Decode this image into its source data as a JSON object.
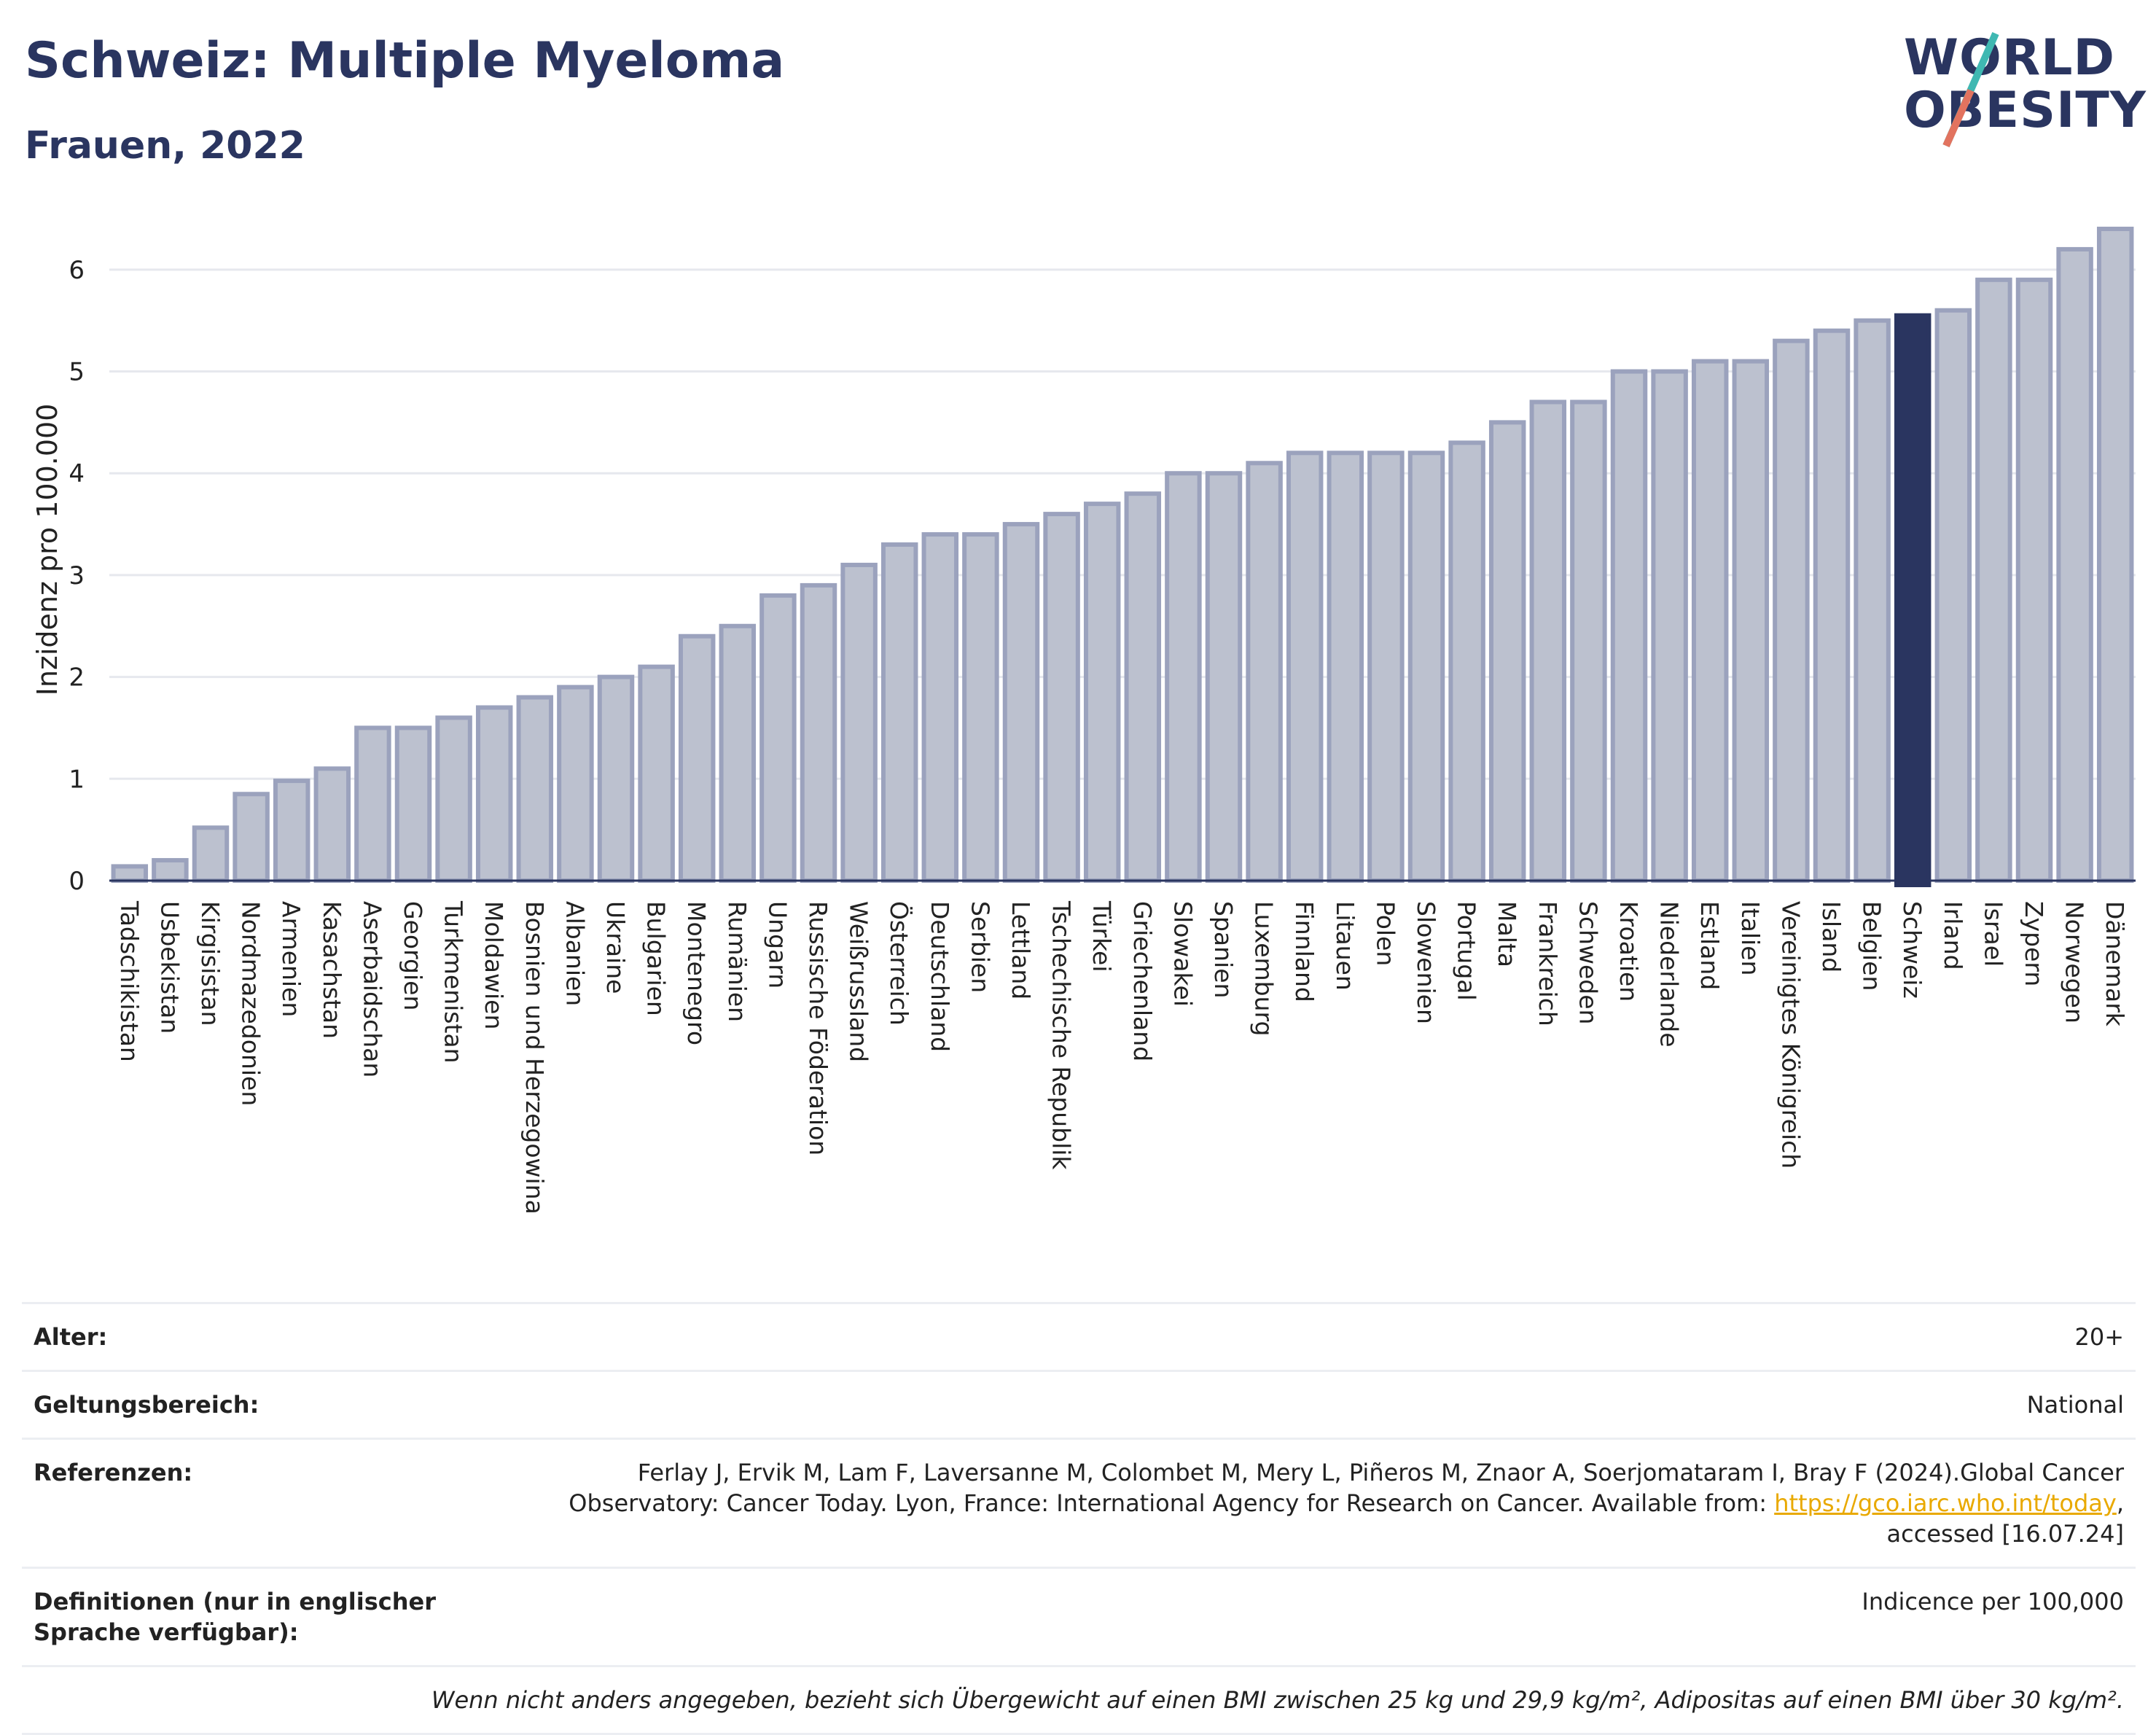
{
  "header": {
    "title": "Schweiz: Multiple Myeloma",
    "subtitle": "Frauen, 2022"
  },
  "logo": {
    "line1": "WORLD",
    "line2": "OBESITY"
  },
  "chart_data": {
    "type": "bar",
    "ylabel": "Inzidenz pro 100.000",
    "ylim": [
      0,
      6.5
    ],
    "yticks": [
      0,
      1,
      2,
      3,
      4,
      5,
      6
    ],
    "grid": true,
    "highlight": "Schweiz",
    "colors": {
      "bar": "#bcc1cf",
      "bar_edge": "#9ba2bd",
      "highlight": "#2a3560"
    },
    "categories": [
      "Tadschikistan",
      "Usbekistan",
      "Kirgisistan",
      "Nordmazedonien",
      "Armenien",
      "Kasachstan",
      "Aserbaidschan",
      "Georgien",
      "Turkmenistan",
      "Moldawien",
      "Bosnien und Herzegowina",
      "Albanien",
      "Ukraine",
      "Bulgarien",
      "Montenegro",
      "Rumänien",
      "Ungarn",
      "Russische Föderation",
      "Weißrussland",
      "Österreich",
      "Deutschland",
      "Serbien",
      "Lettland",
      "Tschechische Republik",
      "Türkei",
      "Griechenland",
      "Slowakei",
      "Spanien",
      "Luxemburg",
      "Finnland",
      "Litauen",
      "Polen",
      "Slowenien",
      "Portugal",
      "Malta",
      "Frankreich",
      "Schweden",
      "Kroatien",
      "Niederlande",
      "Estland",
      "Italien",
      "Vereinigtes Königreich",
      "Island",
      "Belgien",
      "Schweiz",
      "Irland",
      "Israel",
      "Zypern",
      "Norwegen",
      "Dänemark"
    ],
    "values": [
      0.14,
      0.2,
      0.52,
      0.85,
      0.98,
      1.1,
      1.5,
      1.5,
      1.6,
      1.7,
      1.8,
      1.9,
      2.0,
      2.1,
      2.4,
      2.5,
      2.8,
      2.9,
      3.1,
      3.3,
      3.4,
      3.4,
      3.5,
      3.6,
      3.7,
      3.8,
      4.0,
      4.0,
      4.1,
      4.2,
      4.2,
      4.2,
      4.2,
      4.3,
      4.5,
      4.7,
      4.7,
      5.0,
      5.0,
      5.1,
      5.1,
      5.3,
      5.4,
      5.5,
      5.55,
      5.6,
      5.9,
      5.9,
      6.2,
      6.4
    ]
  },
  "info": {
    "age_label": "Alter:",
    "age_value": "20+",
    "scope_label": "Geltungsbereich:",
    "scope_value": "National",
    "refs_label": "Referenzen:",
    "refs_text": "Ferlay J, Ervik M, Lam F, Laversanne M, Colombet M, Mery L, Piñeros M, Znaor A, Soerjomataram I, Bray F (2024).Global Cancer Observatory: Cancer Today. Lyon, France: International Agency for Research on Cancer. Available from: ",
    "refs_link": "https://gco.iarc.who.int/today",
    "refs_tail": ", accessed [16.07.24]",
    "defs_label": "Definitionen (nur in englischer Sprache verfügbar):",
    "defs_value": "Indicence per 100,000",
    "note": "Wenn nicht anders angegeben, bezieht sich Übergewicht auf einen BMI zwischen 25 kg und 29,9 kg/m², Adipositas auf einen BMI über 30 kg/m²."
  }
}
